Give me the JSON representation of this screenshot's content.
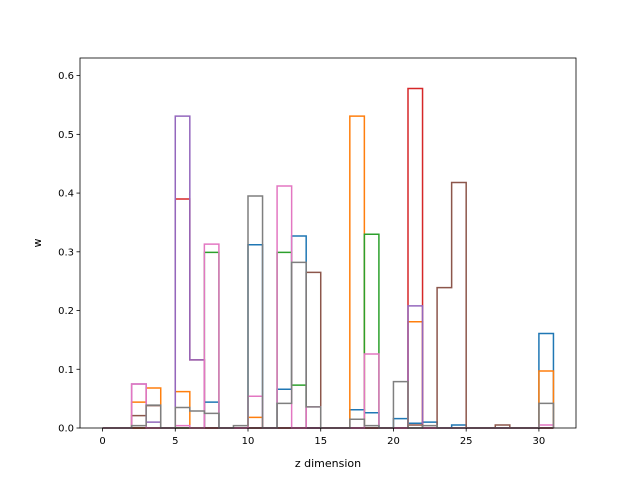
{
  "chart_data": {
    "type": "step-histogram",
    "title": "",
    "xlabel": "z dimension",
    "ylabel": "w",
    "xlim": [
      -1.55,
      32.55
    ],
    "ylim": [
      0,
      0.63
    ],
    "xticks": [
      0,
      5,
      10,
      15,
      20,
      25,
      30
    ],
    "yticks": [
      0.0,
      0.1,
      0.2,
      0.3,
      0.4,
      0.5,
      0.6
    ],
    "ytick_labels": [
      "0.0",
      "0.1",
      "0.2",
      "0.3",
      "0.4",
      "0.5",
      "0.6"
    ],
    "grid": false,
    "bin_edges": [
      0,
      1,
      2,
      3,
      4,
      5,
      6,
      7,
      8,
      9,
      10,
      11,
      12,
      13,
      14,
      15,
      16,
      17,
      18,
      19,
      20,
      21,
      22,
      23,
      24,
      25,
      26,
      27,
      28,
      29,
      30,
      31
    ],
    "series": [
      {
        "color": "#1f77b4",
        "values": [
          0,
          0,
          0,
          0,
          0,
          0,
          0,
          0.044,
          0,
          0,
          0.312,
          0,
          0.066,
          0.327,
          0,
          0,
          0,
          0.031,
          0.026,
          0,
          0.016,
          0.008,
          0.01,
          0,
          0.005,
          0,
          0,
          0,
          0,
          0,
          0.161
        ]
      },
      {
        "color": "#ff7f0e",
        "values": [
          0,
          0,
          0.044,
          0.068,
          0,
          0.062,
          0,
          0,
          0,
          0,
          0.018,
          0,
          0,
          0,
          0,
          0,
          0,
          0.531,
          0,
          0,
          0,
          0.181,
          0,
          0,
          0,
          0,
          0,
          0,
          0,
          0,
          0.097
        ]
      },
      {
        "color": "#2ca02c",
        "values": [
          0,
          0,
          0,
          0,
          0,
          0,
          0,
          0.299,
          0,
          0,
          0,
          0,
          0.299,
          0.073,
          0,
          0,
          0,
          0,
          0.33,
          0,
          0,
          0,
          0,
          0,
          0,
          0,
          0,
          0,
          0,
          0,
          0
        ]
      },
      {
        "color": "#d62728",
        "values": [
          0,
          0,
          0,
          0,
          0,
          0.39,
          0.116,
          0,
          0,
          0,
          0,
          0,
          0,
          0,
          0,
          0,
          0,
          0,
          0,
          0,
          0,
          0.578,
          0,
          0,
          0,
          0,
          0,
          0,
          0,
          0,
          0
        ]
      },
      {
        "color": "#9467bd",
        "values": [
          0,
          0,
          0.075,
          0.01,
          0,
          0.531,
          0.116,
          0,
          0,
          0,
          0,
          0,
          0,
          0,
          0,
          0,
          0,
          0,
          0,
          0,
          0,
          0.208,
          0,
          0,
          0,
          0,
          0,
          0,
          0,
          0,
          0
        ]
      },
      {
        "color": "#8c564b",
        "values": [
          0,
          0,
          0.021,
          0.038,
          0,
          0,
          0,
          0,
          0,
          0,
          0,
          0,
          0,
          0,
          0.265,
          0,
          0,
          0,
          0,
          0,
          0,
          0.005,
          0,
          0.239,
          0.418,
          0,
          0,
          0.005,
          0,
          0,
          0
        ]
      },
      {
        "color": "#e377c2",
        "values": [
          0,
          0,
          0.075,
          0,
          0,
          0.004,
          0,
          0.313,
          0,
          0,
          0.054,
          0,
          0.412,
          0,
          0.036,
          0,
          0,
          0,
          0.126,
          0,
          0,
          0,
          0,
          0,
          0,
          0,
          0,
          0,
          0,
          0,
          0.005
        ]
      },
      {
        "color": "#7f7f7f",
        "values": [
          0,
          0,
          0.004,
          0.039,
          0,
          0.035,
          0.029,
          0.025,
          0,
          0.004,
          0.395,
          0,
          0.042,
          0.282,
          0.036,
          0,
          0,
          0.015,
          0.004,
          0,
          0.079,
          0,
          0.004,
          0,
          0,
          0,
          0,
          0,
          0,
          0,
          0.042
        ]
      }
    ]
  }
}
